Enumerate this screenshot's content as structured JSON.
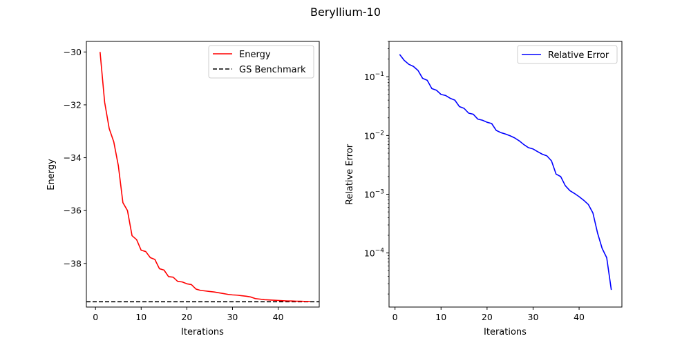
{
  "figure": {
    "title": "Beryllium-10"
  },
  "chart_data": [
    {
      "type": "line",
      "xlabel": "Iterations",
      "ylabel": "Energy",
      "xlim": [
        -2,
        49
      ],
      "ylim": [
        -39.65,
        -29.6
      ],
      "xticks": [
        0,
        10,
        20,
        30,
        40
      ],
      "yticks": [
        -30,
        -32,
        -34,
        -36,
        -38
      ],
      "grid": false,
      "legend": "top-right",
      "series": [
        {
          "name": "Energy",
          "color": "#ff0000",
          "style": "solid",
          "x": [
            1,
            2,
            3,
            4,
            5,
            6,
            7,
            8,
            9,
            10,
            11,
            12,
            13,
            14,
            15,
            16,
            17,
            18,
            19,
            20,
            21,
            22,
            23,
            24,
            25,
            26,
            27,
            28,
            29,
            30,
            31,
            32,
            33,
            34,
            35,
            36,
            37,
            38,
            39,
            40,
            41,
            42,
            43,
            44,
            45,
            46,
            47
          ],
          "y": [
            -30.0,
            -31.9,
            -32.9,
            -33.4,
            -34.3,
            -35.7,
            -36.0,
            -36.95,
            -37.1,
            -37.5,
            -37.55,
            -37.78,
            -37.85,
            -38.2,
            -38.25,
            -38.5,
            -38.52,
            -38.68,
            -38.7,
            -38.77,
            -38.8,
            -38.97,
            -39.02,
            -39.04,
            -39.06,
            -39.08,
            -39.11,
            -39.14,
            -39.17,
            -39.19,
            -39.2,
            -39.22,
            -39.24,
            -39.27,
            -39.33,
            -39.35,
            -39.37,
            -39.38,
            -39.39,
            -39.4,
            -39.41,
            -39.42,
            -39.42,
            -39.43,
            -39.43,
            -39.44,
            -39.44
          ]
        },
        {
          "name": "GS Benchmark",
          "color": "#000000",
          "style": "dashed",
          "y_constant": -39.45
        }
      ]
    },
    {
      "type": "line",
      "xlabel": "Iterations",
      "ylabel": "Relative Error",
      "yscale": "log",
      "xlim": [
        -1.3,
        49.3
      ],
      "ylim": [
        1.2e-05,
        0.4
      ],
      "xticks": [
        0,
        10,
        20,
        30,
        40
      ],
      "yticks": [
        0.0001,
        0.001,
        0.01,
        0.1
      ],
      "ytick_labels": [
        {
          "base": "10",
          "exp": "−4"
        },
        {
          "base": "10",
          "exp": "−3"
        },
        {
          "base": "10",
          "exp": "−2"
        },
        {
          "base": "10",
          "exp": "−1"
        }
      ],
      "grid": false,
      "legend": "top-right",
      "series": [
        {
          "name": "Relative Error",
          "color": "#0000ff",
          "style": "solid",
          "x": [
            1,
            2,
            3,
            4,
            5,
            6,
            7,
            8,
            9,
            10,
            11,
            12,
            13,
            14,
            15,
            16,
            17,
            18,
            19,
            20,
            21,
            22,
            23,
            24,
            25,
            26,
            27,
            28,
            29,
            30,
            31,
            32,
            33,
            34,
            35,
            36,
            37,
            38,
            39,
            40,
            41,
            42,
            43,
            44,
            45,
            46,
            47
          ],
          "y": [
            0.24,
            0.19,
            0.163,
            0.15,
            0.128,
            0.094,
            0.087,
            0.063,
            0.059,
            0.05,
            0.048,
            0.043,
            0.04,
            0.031,
            0.029,
            0.024,
            0.023,
            0.019,
            0.0182,
            0.0168,
            0.016,
            0.0122,
            0.0112,
            0.0106,
            0.0099,
            0.0091,
            0.0081,
            0.007,
            0.0062,
            0.0059,
            0.0053,
            0.0048,
            0.0045,
            0.0037,
            0.0022,
            0.002,
            0.0014,
            0.00115,
            0.00103,
            0.00091,
            0.00079,
            0.00067,
            0.00048,
            0.00022,
            0.00012,
            8.3e-05,
            2.35e-05
          ]
        }
      ]
    }
  ]
}
